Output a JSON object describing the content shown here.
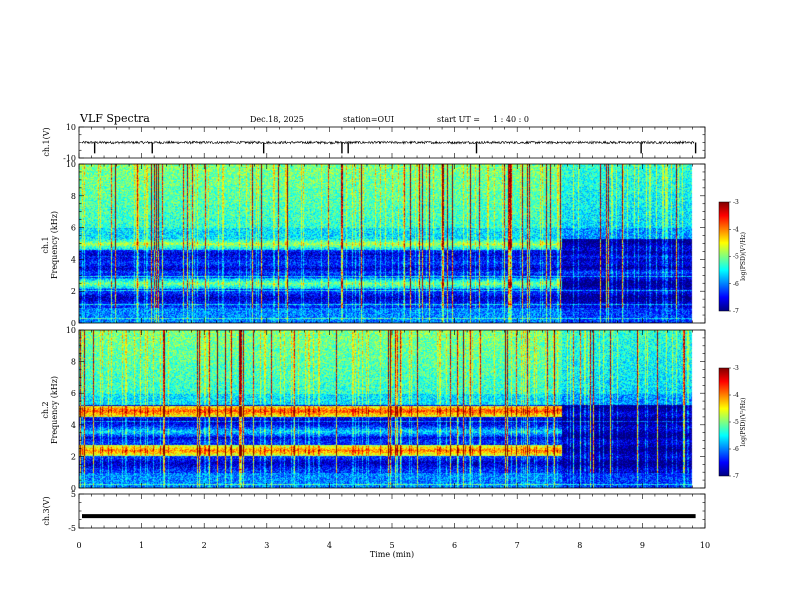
{
  "header": {
    "title": "VLF Spectra",
    "date": "Dec.18, 2025",
    "station": "station=OUI",
    "start_label": "start  UT =",
    "start_time": "1 : 40 : 0"
  },
  "chart_data": [
    {
      "type": "line",
      "id": "ch1",
      "ylabel": "ch.1(V)",
      "ylim": [
        -10,
        10
      ],
      "yticks": [
        "10",
        "-10"
      ],
      "baseline": 0,
      "spikes_min": [
        0.25,
        1.17,
        2.95,
        4.2,
        4.3,
        6.35,
        8.98,
        9.85
      ]
    },
    {
      "type": "heatmap",
      "id": "ch1-spectrogram",
      "ylabel_top": "ch.1",
      "ylabel": "Frequency  (kHz)",
      "ylim": [
        0,
        10
      ],
      "yticks": [
        "0",
        "2",
        "4",
        "6",
        "8",
        "10"
      ],
      "data_end_min": 9.8,
      "bands_khz": [
        {
          "freq": 5.0,
          "level": 0.55,
          "until_min": 7.7
        },
        {
          "freq": 2.5,
          "level": 0.5,
          "until_min": 7.7
        },
        {
          "freq": 4.2,
          "level": 0.15,
          "until_min": 9.8
        },
        {
          "freq": 3.2,
          "level": 0.2,
          "until_min": 9.8
        }
      ],
      "colorbar": {
        "label": "log(PSD)(V²/Hz)",
        "ticks": [
          "-3",
          "-4",
          "-5",
          "-6",
          "-7"
        ],
        "range": [
          -7,
          -3
        ]
      }
    },
    {
      "type": "heatmap",
      "id": "ch2-spectrogram",
      "ylabel_top": "ch.2",
      "ylabel": "Frequency  (kHz)",
      "ylim": [
        0,
        10
      ],
      "yticks": [
        "0",
        "2",
        "4",
        "6",
        "8",
        "10"
      ],
      "data_end_min": 9.8,
      "bands_khz": [
        {
          "freq": 4.9,
          "level": 0.8,
          "until_min": 7.7
        },
        {
          "freq": 2.4,
          "level": 0.75,
          "until_min": 7.7
        },
        {
          "freq": 3.6,
          "level": 0.35,
          "until_min": 7.7
        }
      ],
      "colorbar": {
        "label": "log(PSD)(V²/Hz)",
        "ticks": [
          "-3",
          "-4",
          "-5",
          "-6",
          "-7"
        ],
        "range": [
          -7,
          -3
        ]
      }
    },
    {
      "type": "line",
      "id": "ch3",
      "ylabel": "ch.3(V)",
      "ylim": [
        -5,
        5
      ],
      "yticks": [
        "5",
        "-5"
      ],
      "baseline": -1.5
    }
  ],
  "xaxis": {
    "label": "Time  (min)",
    "range": [
      0,
      10
    ],
    "ticks": [
      "0",
      "1",
      "2",
      "3",
      "4",
      "5",
      "6",
      "7",
      "8",
      "9",
      "10"
    ]
  },
  "colors": {
    "cmap": [
      "#000080",
      "#0000ff",
      "#0080ff",
      "#00ffff",
      "#80ff80",
      "#ffff00",
      "#ff8000",
      "#ff0000",
      "#800000"
    ]
  }
}
